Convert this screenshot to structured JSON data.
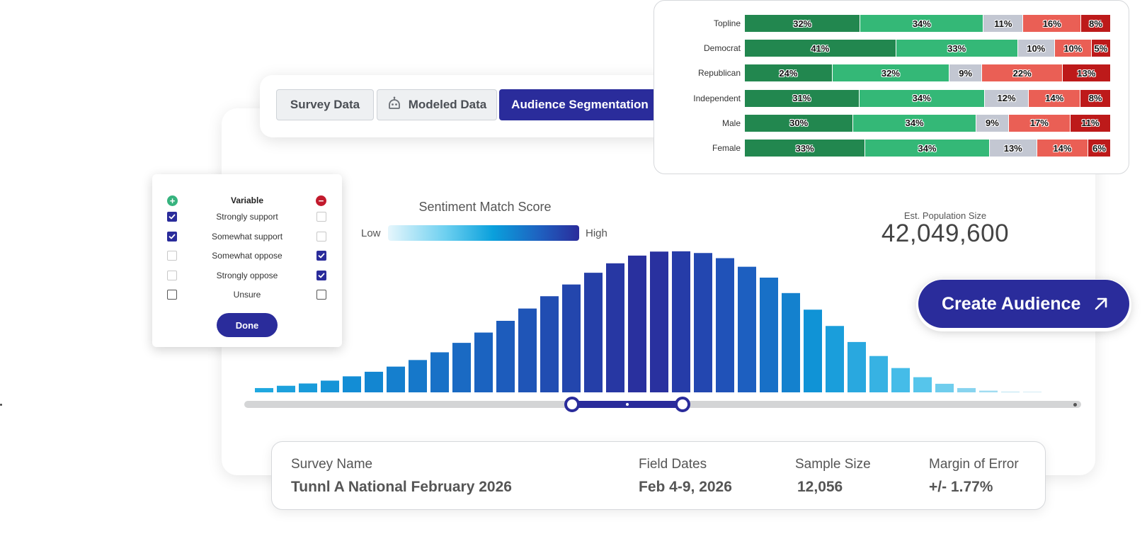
{
  "tabs": [
    {
      "label": "Survey Data",
      "active": false
    },
    {
      "label": "Modeled Data",
      "active": false,
      "icon": "robot-icon"
    },
    {
      "label": "Audience Segmentation",
      "active": true
    }
  ],
  "variable_panel": {
    "header": "Variable",
    "rows": [
      {
        "label": "Strongly support",
        "include": true,
        "exclude": false
      },
      {
        "label": "Somewhat support",
        "include": true,
        "exclude": false
      },
      {
        "label": "Somewhat oppose",
        "include": false,
        "exclude": true
      },
      {
        "label": "Strongly oppose",
        "include": false,
        "exclude": true
      },
      {
        "label": "Unsure",
        "include": false,
        "exclude": false
      }
    ],
    "done_label": "Done"
  },
  "sentiment": {
    "title": "Sentiment Match Score",
    "low": "Low",
    "high": "High"
  },
  "population": {
    "label": "Est. Population Size",
    "value": "42,049,600"
  },
  "create_audience": {
    "label": "Create Audience"
  },
  "survey_info": {
    "survey_name_label": "Survey Name",
    "survey_name": "Tunnl A National February 2026",
    "field_dates_label": "Field Dates",
    "field_dates": "Feb 4-9, 2026",
    "sample_size_label": "Sample Size",
    "sample_size": "12,056",
    "margin_label": "Margin of Error",
    "margin": "+/- 1.77%"
  },
  "colors": {
    "primary": "#2a2c9b",
    "segments": [
      "#22874f",
      "#34b877",
      "#c3c7d2",
      "#ea5f55",
      "#bd1a1a"
    ]
  },
  "chart_data": [
    {
      "type": "bar",
      "orientation": "horizontal-stacked",
      "categories": [
        "Topline",
        "Democrat",
        "Republican",
        "Independent",
        "Male",
        "Female"
      ],
      "series": [
        {
          "values": [
            32,
            41,
            24,
            31,
            30,
            33
          ]
        },
        {
          "values": [
            34,
            33,
            32,
            34,
            34,
            34
          ]
        },
        {
          "values": [
            11,
            10,
            9,
            12,
            9,
            13
          ]
        },
        {
          "values": [
            16,
            10,
            22,
            14,
            17,
            14
          ]
        },
        {
          "values": [
            8,
            5,
            13,
            8,
            11,
            6
          ]
        }
      ],
      "labels": [
        [
          "32%",
          "34%",
          "11%",
          "16%",
          "8%"
        ],
        [
          "41%",
          "33%",
          "10%",
          "10%",
          "5%"
        ],
        [
          "24%",
          "32%",
          "9%",
          "22%",
          "13%"
        ],
        [
          "31%",
          "34%",
          "12%",
          "14%",
          "8%"
        ],
        [
          "30%",
          "34%",
          "9%",
          "17%",
          "11%"
        ],
        [
          "33%",
          "34%",
          "13%",
          "14%",
          "6%"
        ]
      ]
    },
    {
      "type": "bar",
      "title": "",
      "values": [
        1.5,
        2.3,
        3.1,
        4.1,
        5.6,
        7.2,
        9.0,
        11.3,
        14.0,
        17.3,
        20.9,
        25.0,
        29.3,
        33.6,
        37.7,
        41.8,
        45.1,
        47.8,
        49.2,
        49.3,
        48.7,
        46.9,
        43.9,
        40.1,
        34.7,
        28.9,
        23.2,
        17.6,
        12.7,
        8.5,
        5.3,
        3.0,
        1.5,
        0.6,
        0.2,
        0.1
      ],
      "ylim": [
        0,
        50
      ],
      "selected_range": [
        15,
        19
      ]
    }
  ]
}
